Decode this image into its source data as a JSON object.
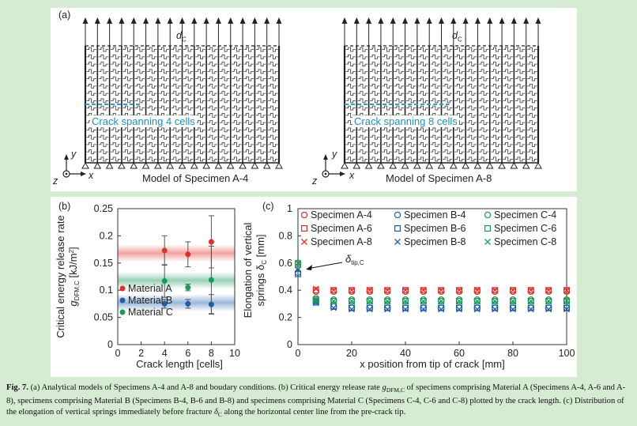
{
  "figure": {
    "panel_a": {
      "label": "(a)",
      "models": [
        {
          "title": "Model of Specimen A-4",
          "crack_text": "Crack spanning 4 cells",
          "d_label": "d",
          "d_sub": "C"
        },
        {
          "title": "Model of Specimen A-8",
          "crack_text": "Crack spanning 8 cells",
          "d_label": "d",
          "d_sub": "C"
        }
      ],
      "axes": {
        "y": "y",
        "x": "x",
        "z": "z"
      }
    },
    "panel_b_label": "(b)",
    "panel_c_label": "(c)",
    "delta_annotation": "δ",
    "delta_annotation_sub": "tip,C"
  },
  "chart_data": [
    {
      "type": "scatter",
      "title": "",
      "xlabel": "Crack length [cells]",
      "ylabel_lines": [
        "Critical energy release rate",
        "g",
        "DFM,C",
        " [kJ/m",
        "2",
        "]"
      ],
      "xlim": [
        0,
        10
      ],
      "ylim": [
        0,
        0.25
      ],
      "xticks": [
        "0",
        "2",
        "4",
        "6",
        "8",
        "10"
      ],
      "yticks": [
        "0",
        "0.05",
        "0.1",
        "0.15",
        "0.2",
        "0.25"
      ],
      "series": [
        {
          "name": "Material A",
          "color": "#e0302a",
          "x": [
            4,
            6,
            8
          ],
          "y": [
            0.173,
            0.166,
            0.189
          ],
          "err": [
            0.027,
            0.023,
            0.048
          ],
          "band": 0.168
        },
        {
          "name": "Material B",
          "color": "#1f5fa8",
          "x": [
            4,
            6,
            8
          ],
          "y": [
            0.075,
            0.075,
            0.074
          ],
          "err": [
            0.008,
            0.008,
            0.018
          ],
          "band": 0.077
        },
        {
          "name": "Material C",
          "color": "#1a9a5a",
          "x": [
            4,
            6,
            8
          ],
          "y": [
            0.117,
            0.105,
            0.119
          ],
          "err": [
            0.03,
            0.006,
            0.062
          ],
          "band": 0.118
        }
      ],
      "legend_position": "bottom-left"
    },
    {
      "type": "scatter",
      "title": "",
      "xlabel": "x position from tip of crack [mm]",
      "ylabel_lines": [
        "Elongation of vertical",
        "springs δ",
        "C",
        " [mm]"
      ],
      "xlim": [
        0,
        100
      ],
      "ylim": [
        0,
        1
      ],
      "xticks": [
        "0",
        "20",
        "40",
        "60",
        "80",
        "100"
      ],
      "yticks": [
        "0",
        "0.2",
        "0.4",
        "0.6",
        "0.8",
        "1"
      ],
      "x": [
        0,
        6.7,
        13.3,
        20,
        26.7,
        33.3,
        40,
        46.7,
        53.3,
        60,
        66.7,
        73.3,
        80,
        86.7,
        93.3,
        100
      ],
      "series": [
        {
          "name": "Specimen A-4",
          "marker": "circle",
          "color": "#e0302a",
          "y": [
            0.6,
            0.39,
            0.39,
            0.39,
            0.39,
            0.39,
            0.39,
            0.39,
            0.39,
            0.39,
            0.39,
            0.39,
            0.39,
            0.39,
            0.39,
            0.39
          ]
        },
        {
          "name": "Specimen A-6",
          "marker": "square",
          "color": "#e0302a",
          "y": [
            0.59,
            0.4,
            0.4,
            0.4,
            0.4,
            0.4,
            0.4,
            0.4,
            0.4,
            0.4,
            0.4,
            0.4,
            0.4,
            0.4,
            0.4,
            0.4
          ]
        },
        {
          "name": "Specimen A-8",
          "marker": "cross",
          "color": "#e0302a",
          "y": [
            0.6,
            0.41,
            0.4,
            0.4,
            0.4,
            0.4,
            0.4,
            0.4,
            0.4,
            0.4,
            0.4,
            0.4,
            0.4,
            0.4,
            0.4,
            0.4
          ]
        },
        {
          "name": "Specimen B-4",
          "marker": "circle",
          "color": "#1f5fa8",
          "y": [
            0.53,
            0.32,
            0.28,
            0.27,
            0.27,
            0.27,
            0.27,
            0.27,
            0.27,
            0.27,
            0.27,
            0.27,
            0.27,
            0.27,
            0.27,
            0.27
          ]
        },
        {
          "name": "Specimen B-6",
          "marker": "square",
          "color": "#1f5fa8",
          "y": [
            0.52,
            0.31,
            0.28,
            0.27,
            0.27,
            0.27,
            0.27,
            0.27,
            0.27,
            0.27,
            0.27,
            0.27,
            0.27,
            0.27,
            0.27,
            0.27
          ]
        },
        {
          "name": "Specimen B-8",
          "marker": "cross",
          "color": "#1f5fa8",
          "y": [
            0.55,
            0.31,
            0.27,
            0.26,
            0.26,
            0.26,
            0.26,
            0.26,
            0.26,
            0.26,
            0.26,
            0.26,
            0.26,
            0.26,
            0.26,
            0.26
          ]
        },
        {
          "name": "Specimen C-4",
          "marker": "circle",
          "color": "#1a9a5a",
          "y": [
            0.6,
            0.34,
            0.33,
            0.33,
            0.33,
            0.33,
            0.33,
            0.33,
            0.33,
            0.33,
            0.33,
            0.33,
            0.33,
            0.33,
            0.33,
            0.33
          ]
        },
        {
          "name": "Specimen C-6",
          "marker": "square",
          "color": "#1a9a5a",
          "y": [
            0.59,
            0.33,
            0.32,
            0.32,
            0.32,
            0.32,
            0.32,
            0.32,
            0.32,
            0.32,
            0.32,
            0.32,
            0.32,
            0.32,
            0.32,
            0.32
          ]
        },
        {
          "name": "Specimen C-8",
          "marker": "cross",
          "color": "#1a9a5a",
          "y": [
            0.6,
            0.33,
            0.32,
            0.32,
            0.32,
            0.32,
            0.32,
            0.32,
            0.32,
            0.32,
            0.32,
            0.32,
            0.32,
            0.32,
            0.32,
            0.32
          ]
        }
      ],
      "legend_position": "top"
    }
  ],
  "caption": {
    "fig_label": "Fig. 7.",
    "text_1": " (a) Analytical models of Specimens A-4 and A-8 and boudary conditions. (b) Critical energy release rate ",
    "g_symbol": "g",
    "g_sub": "DFM,C",
    "text_2": " of specimens comprising Material A (Specimens A-4, A-6 and A-8), specimens comprising Material B (Specimens B-4, B-6 and B-8) and specimens comprising Material C (Specimens C-4, C-6 and C-8) plotted by the crack length. (c) Distribution of the elongation of vertical springs immediately before fracture ",
    "delta_symbol": "δ",
    "delta_sub": "C",
    "text_3": " along the horizontal center line from the pre-crack tip."
  }
}
